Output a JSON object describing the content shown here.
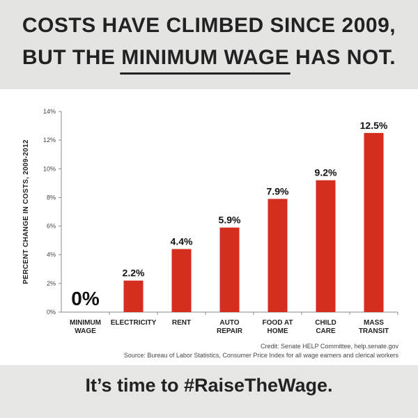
{
  "header": {
    "line1": "COSTS HAVE CLIMBED SINCE 2009,",
    "line2_pre": "BUT THE ",
    "line2_emph": "MINIMUM WAGE",
    "line2_post": " HAS NOT."
  },
  "chart_data": {
    "type": "bar",
    "title": "",
    "xlabel": "",
    "ylabel": "PERCENT CHANGE IN COSTS, 2009-2012",
    "categories": [
      [
        "MINIMUM",
        "WAGE"
      ],
      [
        "ELECTRICITY"
      ],
      [
        "RENT"
      ],
      [
        "AUTO",
        "REPAIR"
      ],
      [
        "FOOD AT",
        "HOME"
      ],
      [
        "CHILD",
        "CARE"
      ],
      [
        "MASS",
        "TRANSIT"
      ]
    ],
    "values": [
      0,
      2.2,
      4.4,
      5.9,
      7.9,
      9.2,
      12.5
    ],
    "value_labels": [
      "0%",
      "2.2%",
      "4.4%",
      "5.9%",
      "7.9%",
      "9.2%",
      "12.5%"
    ],
    "ylim": [
      0,
      14
    ],
    "yticks": [
      0,
      2,
      4,
      6,
      8,
      10,
      12,
      14
    ],
    "ytick_labels": [
      "0%",
      "2%",
      "4%",
      "6%",
      "8%",
      "10%",
      "12%",
      "14%"
    ],
    "grid": false,
    "bar_color": "#d42e1f"
  },
  "credits": {
    "line1": "Credit: Senate HELP Committee, help.senate.gov",
    "line2": "Source: Bureau of Labor Statistics, Consumer Price Index for all wage earners and clerical workers"
  },
  "footer": {
    "tagline": "It’s time to #RaiseTheWage."
  }
}
